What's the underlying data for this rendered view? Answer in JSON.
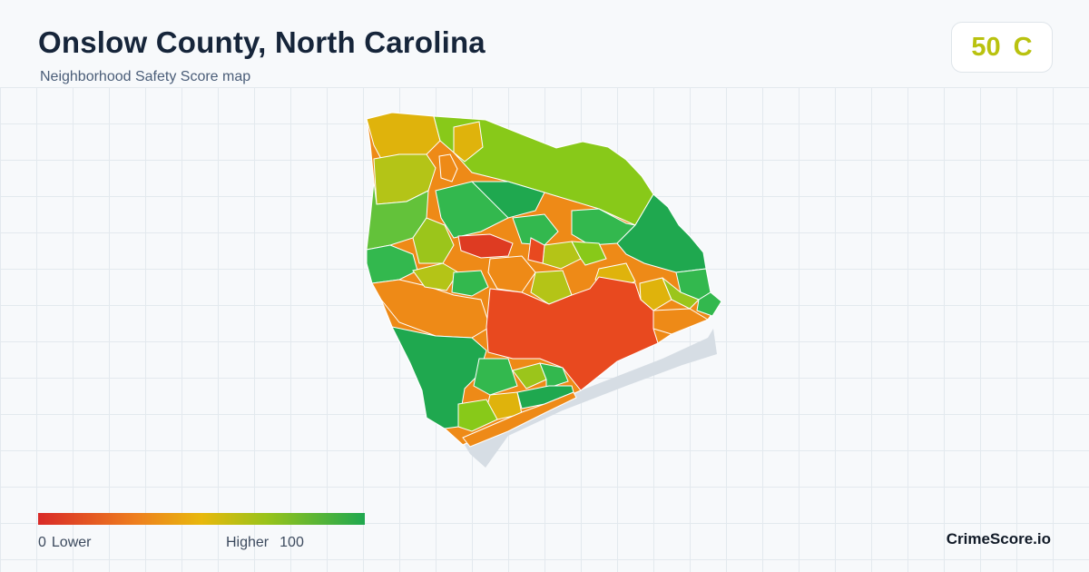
{
  "header": {
    "title": "Onslow County, North Carolina",
    "subtitle": "Neighborhood Safety Score map"
  },
  "score": {
    "value": "50",
    "grade": "C",
    "color": "#b9c20f"
  },
  "legend": {
    "min_value": "0",
    "min_label": "Lower",
    "max_label": "Higher",
    "max_value": "100",
    "colors": [
      "#d92a27",
      "#ee7f1e",
      "#e8b80c",
      "#98c31a",
      "#1fa84f"
    ]
  },
  "brand": "CrimeScore.io",
  "map": {
    "region": "Onslow County",
    "fill_colors": {
      "red": "#de3b22",
      "orange_red": "#e8491f",
      "orange": "#ee8a17",
      "amber": "#dfb30c",
      "yellow_green": "#b4c417",
      "lime": "#88c919",
      "green": "#33b84e",
      "dark_green": "#1fa84f",
      "water": "#d6dde4"
    }
  }
}
